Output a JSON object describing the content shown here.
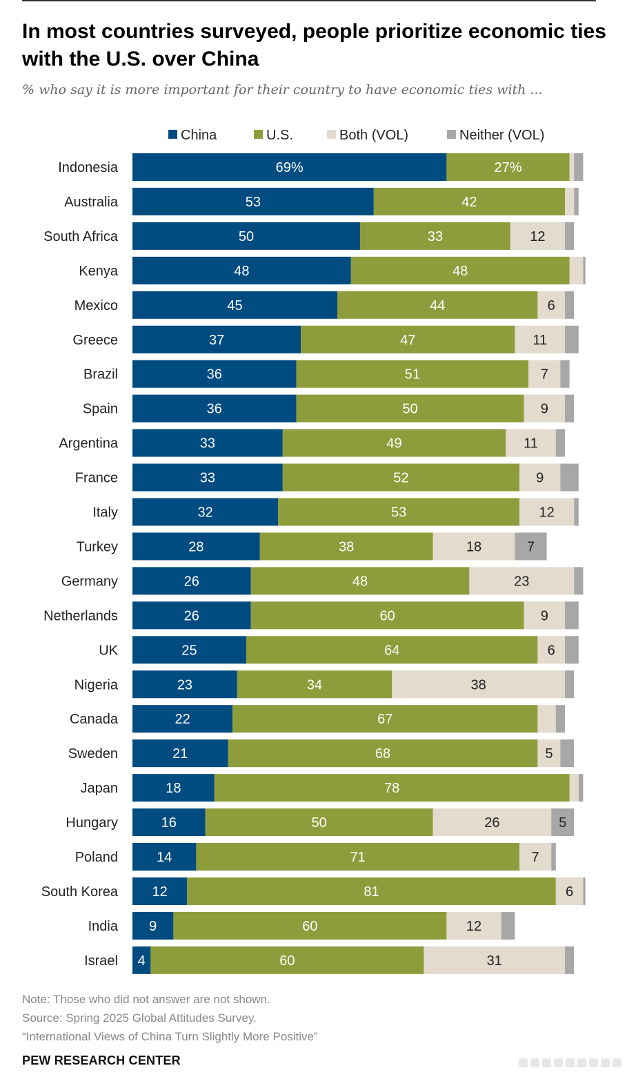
{
  "title": "In most countries surveyed, people prioritize economic ties with the U.S. over China",
  "subtitle": "% who say it is more important for their country to have economic ties with ...",
  "notes": [
    "Note: Those who did not answer are not shown.",
    "Source: Spring 2025 Global Attitudes Survey.",
    "“International Views of China Turn Slightly More Positive”"
  ],
  "brand": "PEW RESEARCH CENTER",
  "colors": {
    "China": "#004b80",
    "U.S.": "#8f9c3b",
    "Both (VOL)": "#e2dbce",
    "Neither (VOL)": "#a7a7a7"
  },
  "chart_data": {
    "type": "bar",
    "orientation": "horizontal",
    "stacked": true,
    "legend_position": "top",
    "grid": false,
    "xlim": [
      0,
      100
    ],
    "first_row_percent_suffix": true,
    "categories": [
      "Indonesia",
      "Australia",
      "South Africa",
      "Kenya",
      "Mexico",
      "Greece",
      "Brazil",
      "Spain",
      "Argentina",
      "France",
      "Italy",
      "Turkey",
      "Germany",
      "Netherlands",
      "UK",
      "Nigeria",
      "Canada",
      "Sweden",
      "Japan",
      "Hungary",
      "Poland",
      "South Korea",
      "India",
      "Israel"
    ],
    "series": [
      {
        "name": "China",
        "values": [
          69,
          53,
          50,
          48,
          45,
          37,
          36,
          36,
          33,
          33,
          32,
          28,
          26,
          26,
          25,
          23,
          22,
          21,
          18,
          16,
          14,
          12,
          9,
          4
        ],
        "labels": [
          "69%",
          "53",
          "50",
          "48",
          "45",
          "37",
          "36",
          "36",
          "33",
          "33",
          "32",
          "28",
          "26",
          "26",
          "25",
          "23",
          "22",
          "21",
          "18",
          "16",
          "14",
          "12",
          "9",
          "4"
        ]
      },
      {
        "name": "U.S.",
        "values": [
          27,
          42,
          33,
          48,
          44,
          47,
          51,
          50,
          49,
          52,
          53,
          38,
          48,
          60,
          64,
          34,
          67,
          68,
          78,
          50,
          71,
          81,
          60,
          60
        ],
        "labels": [
          "27%",
          "42",
          "33",
          "48",
          "44",
          "47",
          "51",
          "50",
          "49",
          "52",
          "53",
          "38",
          "48",
          "60",
          "64",
          "34",
          "67",
          "68",
          "78",
          "50",
          "71",
          "81",
          "60",
          "60"
        ]
      },
      {
        "name": "Both (VOL)",
        "values": [
          1,
          2,
          12,
          3,
          6,
          11,
          7,
          9,
          11,
          9,
          12,
          18,
          23,
          9,
          6,
          38,
          4,
          5,
          2,
          26,
          7,
          6,
          12,
          31
        ],
        "labels": [
          "",
          "",
          "12",
          "",
          "6",
          "11",
          "7",
          "9",
          "11",
          "9",
          "12",
          "18",
          "23",
          "9",
          "6",
          "38",
          "",
          "5",
          "",
          "26",
          "7",
          "6",
          "12",
          "31"
        ]
      },
      {
        "name": "Neither (VOL)",
        "values": [
          2,
          1,
          2,
          0.5,
          2,
          3,
          2,
          2,
          2,
          4,
          1,
          7,
          2,
          3,
          3,
          2,
          2,
          3,
          1,
          5,
          1,
          0.5,
          3,
          2
        ],
        "labels": [
          "",
          "",
          "",
          "",
          "",
          "",
          "",
          "",
          "",
          "",
          "",
          "7",
          "",
          "",
          "",
          "",
          "",
          "",
          "",
          "5",
          "",
          "",
          "",
          ""
        ]
      }
    ]
  }
}
